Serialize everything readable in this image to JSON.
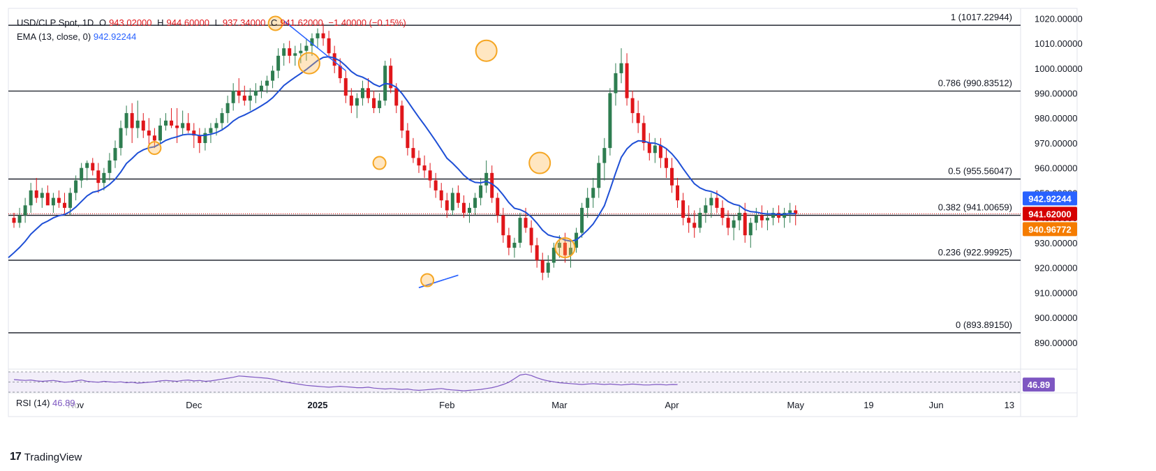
{
  "header": {
    "symbol": "USD/CLP Spot, 1D",
    "open_label": "O",
    "open": "943.02000",
    "high_label": "H",
    "high": "944.60000",
    "low_label": "L",
    "low": "937.34000",
    "close_label": "C",
    "close": "941.62000",
    "change": "−1.40000 (−0.15%)",
    "ema_label": "EMA (13, close, 0)",
    "ema_value": "942.92244"
  },
  "rsi": {
    "label": "RSI (14)",
    "value": "46.89",
    "values": [
      58,
      57,
      56,
      57,
      55,
      54,
      55,
      56,
      54,
      52,
      53,
      55,
      57,
      54,
      53,
      52,
      54,
      53,
      52,
      53,
      51,
      52,
      50,
      51,
      52,
      53,
      55,
      56,
      55,
      54,
      56,
      57,
      55,
      56,
      54,
      55,
      57,
      59,
      61,
      63,
      66,
      65,
      64,
      63,
      62,
      61,
      59,
      56,
      53,
      51,
      49,
      47,
      45,
      44,
      43,
      42,
      41,
      42,
      43,
      42,
      41,
      40,
      40,
      41,
      39,
      38,
      37,
      38,
      37,
      36,
      37,
      35,
      34,
      35,
      36,
      37,
      38,
      36,
      35,
      34,
      33,
      34,
      35,
      36,
      38,
      40,
      43,
      47,
      52,
      60,
      68,
      70,
      67,
      62,
      58,
      55,
      53,
      51,
      50,
      49,
      48,
      47,
      48,
      49,
      48,
      47,
      48,
      47,
      46,
      47,
      48,
      47,
      46,
      46,
      47,
      47,
      46,
      47,
      46.89
    ],
    "color": "#7e57c2"
  },
  "logo": {
    "text": "TradingView",
    "mark": "17"
  },
  "chart_data": {
    "type": "candlestick",
    "title": "USD/CLP Spot, 1D",
    "ylim": [
      881,
      1024
    ],
    "y_ticks": [
      890,
      900,
      910,
      920,
      930,
      940,
      950,
      960,
      970,
      980,
      990,
      1000,
      1010,
      1020
    ],
    "y_tick_labels": [
      "890.00000",
      "900.00000",
      "910.00000",
      "920.00000",
      "930.00000",
      "940.00000",
      "950.00000",
      "960.00000",
      "970.00000",
      "980.00000",
      "990.00000",
      "1000.00000",
      "1010.00000",
      "1020.00000"
    ],
    "x_labels": [
      {
        "label": "Nov",
        "i": 11
      },
      {
        "label": "Dec",
        "i": 32
      },
      {
        "label": "2025",
        "i": 54,
        "bold": true
      },
      {
        "label": "Feb",
        "i": 77
      },
      {
        "label": "Mar",
        "i": 97
      },
      {
        "label": "Apr",
        "i": 117
      },
      {
        "label": "May",
        "i": 139
      },
      {
        "label": "19",
        "i": 152
      },
      {
        "label": "Jun",
        "i": 164
      },
      {
        "label": "13",
        "i": 177
      }
    ],
    "x_slots": 180,
    "up_color": "#2e7d50",
    "down_color": "#e0161a",
    "fibonacci": [
      {
        "label": "1 (1017.22944)",
        "value": 1017.22944
      },
      {
        "label": "0.786 (990.83512)",
        "value": 990.83512
      },
      {
        "label": "0.5 (955.56047)",
        "value": 955.56047
      },
      {
        "label": "0.382 (941.00659)",
        "value": 941.00659
      },
      {
        "label": "0.236 (922.99925)",
        "value": 922.99925
      },
      {
        "label": "0 (893.89150)",
        "value": 893.8915
      }
    ],
    "price_badges": [
      {
        "text": "942.92244",
        "value": 942.92244,
        "color": "#2962ff"
      },
      {
        "text": "941.62000",
        "value": 941.62,
        "color": "#d50000"
      },
      {
        "text": "940.96772",
        "value": 940.96772,
        "color": "#f57c00"
      }
    ],
    "rsi_badge": {
      "text": "46.89",
      "color": "#7e57c2"
    },
    "candles": [
      [
        940,
        942,
        936,
        938
      ],
      [
        938,
        944,
        936,
        941
      ],
      [
        941,
        948,
        938,
        945
      ],
      [
        945,
        954,
        942,
        951
      ],
      [
        951,
        956,
        946,
        948
      ],
      [
        948,
        952,
        944,
        950
      ],
      [
        950,
        953,
        946,
        945
      ],
      [
        945,
        950,
        942,
        948
      ],
      [
        948,
        951,
        944,
        946
      ],
      [
        946,
        950,
        941,
        944
      ],
      [
        944,
        952,
        941,
        950
      ],
      [
        950,
        957,
        947,
        955
      ],
      [
        955,
        962,
        952,
        960
      ],
      [
        960,
        963,
        955,
        962
      ],
      [
        962,
        964,
        957,
        959
      ],
      [
        959,
        962,
        950,
        954
      ],
      [
        954,
        960,
        951,
        958
      ],
      [
        958,
        966,
        955,
        963
      ],
      [
        963,
        971,
        960,
        968
      ],
      [
        968,
        979,
        965,
        976
      ],
      [
        976,
        985,
        973,
        982
      ],
      [
        982,
        986,
        970,
        976
      ],
      [
        976,
        987,
        972,
        979
      ],
      [
        979,
        982,
        972,
        975
      ],
      [
        975,
        980,
        969,
        973
      ],
      [
        973,
        976,
        968,
        971
      ],
      [
        971,
        980,
        969,
        977
      ],
      [
        977,
        982,
        975,
        979
      ],
      [
        979,
        984,
        976,
        977
      ],
      [
        977,
        984,
        970,
        976
      ],
      [
        976,
        983,
        973,
        978
      ],
      [
        978,
        982,
        974,
        975
      ],
      [
        975,
        978,
        968,
        973
      ],
      [
        973,
        976,
        966,
        970
      ],
      [
        970,
        976,
        967,
        974
      ],
      [
        974,
        978,
        970,
        976
      ],
      [
        976,
        980,
        973,
        978
      ],
      [
        978,
        984,
        975,
        982
      ],
      [
        982,
        989,
        978,
        986
      ],
      [
        986,
        994,
        983,
        991
      ],
      [
        991,
        996,
        986,
        989
      ],
      [
        989,
        993,
        985,
        987
      ],
      [
        987,
        992,
        983,
        989
      ],
      [
        989,
        994,
        986,
        991
      ],
      [
        991,
        995,
        988,
        993
      ],
      [
        993,
        997,
        990,
        995
      ],
      [
        995,
        1001,
        992,
        999
      ],
      [
        999,
        1008,
        996,
        1005
      ],
      [
        1005,
        1010,
        1001,
        1008
      ],
      [
        1008,
        1011,
        1002,
        1005
      ],
      [
        1005,
        1009,
        1001,
        1006
      ],
      [
        1006,
        1010,
        1002,
        1007
      ],
      [
        1007,
        1012,
        1003,
        1009
      ],
      [
        1009,
        1014,
        1005,
        1012
      ],
      [
        1012,
        1016,
        1008,
        1014
      ],
      [
        1014,
        1018,
        1009,
        1012
      ],
      [
        1012,
        1015,
        1004,
        1006
      ],
      [
        1006,
        1009,
        998,
        1001
      ],
      [
        1001,
        1004,
        994,
        996
      ],
      [
        996,
        999,
        986,
        989
      ],
      [
        989,
        992,
        982,
        985
      ],
      [
        985,
        990,
        980,
        988
      ],
      [
        988,
        995,
        985,
        992
      ],
      [
        992,
        996,
        986,
        988
      ],
      [
        988,
        991,
        982,
        984
      ],
      [
        984,
        990,
        982,
        987
      ],
      [
        987,
        1003,
        985,
        1001
      ],
      [
        1001,
        1004,
        990,
        992
      ],
      [
        992,
        994,
        982,
        985
      ],
      [
        985,
        987,
        972,
        975
      ],
      [
        975,
        978,
        965,
        968
      ],
      [
        968,
        972,
        962,
        964
      ],
      [
        964,
        967,
        958,
        961
      ],
      [
        961,
        965,
        956,
        959
      ],
      [
        959,
        962,
        952,
        955
      ],
      [
        955,
        958,
        948,
        951
      ],
      [
        951,
        954,
        944,
        947
      ],
      [
        947,
        950,
        940,
        943
      ],
      [
        943,
        952,
        941,
        950
      ],
      [
        950,
        953,
        944,
        946
      ],
      [
        946,
        949,
        940,
        942
      ],
      [
        942,
        946,
        938,
        944
      ],
      [
        944,
        950,
        941,
        948
      ],
      [
        948,
        956,
        945,
        953
      ],
      [
        953,
        963,
        950,
        958
      ],
      [
        958,
        961,
        946,
        948
      ],
      [
        948,
        950,
        938,
        941
      ],
      [
        941,
        944,
        930,
        933
      ],
      [
        933,
        936,
        925,
        928
      ],
      [
        928,
        932,
        924,
        930
      ],
      [
        930,
        942,
        928,
        940
      ],
      [
        940,
        944,
        934,
        936
      ],
      [
        936,
        939,
        926,
        929
      ],
      [
        929,
        932,
        920,
        923
      ],
      [
        923,
        926,
        915,
        918
      ],
      [
        918,
        925,
        916,
        922
      ],
      [
        922,
        930,
        920,
        928
      ],
      [
        928,
        933,
        924,
        930
      ],
      [
        930,
        934,
        922,
        925
      ],
      [
        925,
        931,
        920,
        928
      ],
      [
        928,
        936,
        926,
        934
      ],
      [
        934,
        946,
        932,
        944
      ],
      [
        944,
        952,
        940,
        948
      ],
      [
        948,
        956,
        944,
        952
      ],
      [
        952,
        965,
        948,
        962
      ],
      [
        962,
        972,
        955,
        968
      ],
      [
        968,
        992,
        965,
        990
      ],
      [
        990,
        1002,
        985,
        998
      ],
      [
        998,
        1008,
        994,
        1002
      ],
      [
        1002,
        1006,
        985,
        988
      ],
      [
        988,
        991,
        978,
        982
      ],
      [
        982,
        987,
        974,
        978
      ],
      [
        978,
        981,
        967,
        970
      ],
      [
        970,
        974,
        963,
        966
      ],
      [
        966,
        972,
        962,
        969
      ],
      [
        969,
        972,
        960,
        964
      ],
      [
        964,
        968,
        956,
        960
      ],
      [
        960,
        964,
        950,
        953
      ],
      [
        953,
        956,
        944,
        947
      ],
      [
        947,
        950,
        937,
        940
      ],
      [
        940,
        945,
        934,
        938
      ],
      [
        938,
        943,
        932,
        936
      ],
      [
        936,
        944,
        934,
        942
      ],
      [
        942,
        948,
        938,
        945
      ],
      [
        945,
        950,
        940,
        948
      ],
      [
        948,
        951,
        942,
        944
      ],
      [
        944,
        947,
        937,
        940
      ],
      [
        940,
        943,
        933,
        936
      ],
      [
        936,
        941,
        931,
        939
      ],
      [
        939,
        945,
        935,
        942
      ],
      [
        942,
        946,
        930,
        933
      ],
      [
        933,
        940,
        928,
        938
      ],
      [
        938,
        944,
        935,
        941
      ],
      [
        941,
        945,
        936,
        939
      ],
      [
        939,
        943,
        935,
        940
      ],
      [
        940,
        944,
        937,
        942
      ],
      [
        942,
        945,
        938,
        940
      ],
      [
        940,
        944,
        936,
        942
      ],
      [
        942,
        946,
        938,
        943
      ],
      [
        943,
        945,
        937,
        941.62
      ]
    ]
  }
}
